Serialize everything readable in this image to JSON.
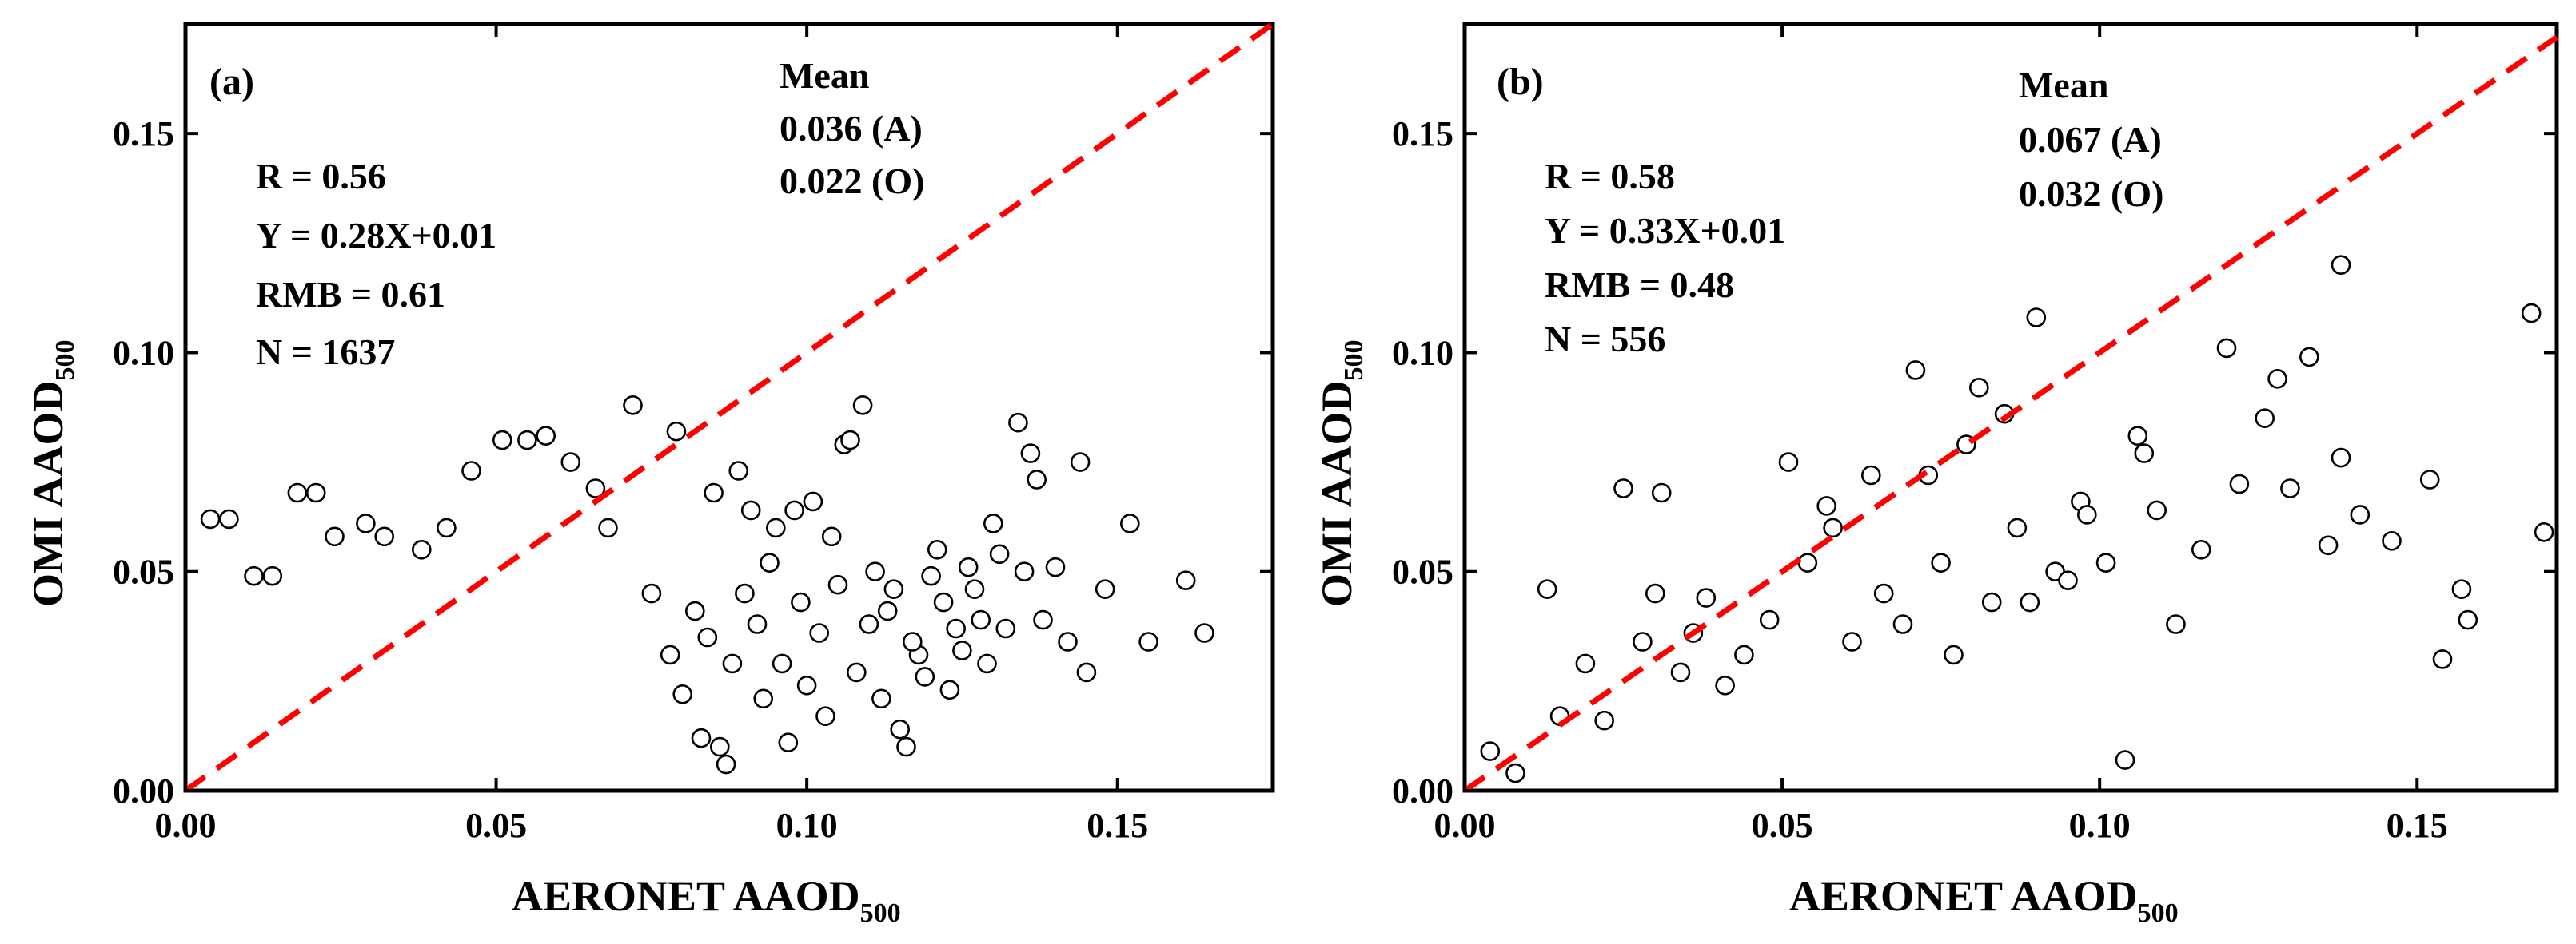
{
  "figure": {
    "panels": [
      {
        "panel_label": "(a)",
        "x_axis_title": "AERONET AAOD",
        "x_axis_sub": "500",
        "y_axis_title": "OMI AAOD",
        "y_axis_sub": "500",
        "x_ticks": [
          "0.00",
          "0.05",
          "0.10",
          "0.15"
        ],
        "y_ticks": [
          "0.00",
          "0.05",
          "0.10",
          "0.15"
        ],
        "stats": [
          "R = 0.56",
          "Y = 0.28X+0.01",
          "RMB = 0.61",
          "N = 1637"
        ],
        "mean_title": "Mean",
        "mean_lines": [
          "0.036 (A)",
          "0.022 (O)"
        ]
      },
      {
        "panel_label": "(b)",
        "x_axis_title": "AERONET AAOD",
        "x_axis_sub": "500",
        "y_axis_title": "OMI AAOD",
        "y_axis_sub": "500",
        "x_ticks": [
          "0.00",
          "0.05",
          "0.10",
          "0.15"
        ],
        "y_ticks": [
          "0.00",
          "0.05",
          "0.10",
          "0.15"
        ],
        "stats": [
          "R = 0.58",
          "Y = 0.33X+0.01",
          "RMB = 0.48",
          "N = 556"
        ],
        "mean_title": "Mean",
        "mean_lines": [
          "0.067 (A)",
          "0.032 (O)"
        ]
      }
    ]
  },
  "chart_data": [
    {
      "type": "scatter",
      "panel": "(a)",
      "xlabel": "AERONET AAOD500",
      "ylabel": "OMI AAOD500",
      "xlim": [
        0,
        0.175
      ],
      "ylim": [
        0,
        0.175
      ],
      "xticks": [
        0,
        0.05,
        0.1,
        0.15
      ],
      "yticks": [
        0,
        0.05,
        0.1,
        0.15
      ],
      "grid": false,
      "reference_line": {
        "style": "dashed",
        "color": "#ff0000",
        "from": [
          0,
          0
        ],
        "to": [
          0.175,
          0.175
        ],
        "label": "1:1"
      },
      "annotations": [
        "R = 0.56",
        "Y = 0.28X+0.01",
        "RMB = 0.61",
        "N = 1637",
        "Mean",
        "0.036 (A)",
        "0.022 (O)"
      ],
      "series": [
        {
          "marker": "open-circle",
          "n_shown_as_estimate": 1637,
          "points": [
            [
              0.004,
              0.062
            ],
            [
              0.007,
              0.062
            ],
            [
              0.011,
              0.049
            ],
            [
              0.014,
              0.049
            ],
            [
              0.018,
              0.068
            ],
            [
              0.021,
              0.068
            ],
            [
              0.024,
              0.058
            ],
            [
              0.029,
              0.061
            ],
            [
              0.032,
              0.058
            ],
            [
              0.038,
              0.055
            ],
            [
              0.042,
              0.06
            ],
            [
              0.046,
              0.073
            ],
            [
              0.051,
              0.08
            ],
            [
              0.055,
              0.08
            ],
            [
              0.058,
              0.081
            ],
            [
              0.062,
              0.075
            ],
            [
              0.066,
              0.069
            ],
            [
              0.068,
              0.06
            ],
            [
              0.072,
              0.088
            ],
            [
              0.079,
              0.082
            ],
            [
              0.085,
              0.068
            ],
            [
              0.089,
              0.073
            ],
            [
              0.091,
              0.064
            ],
            [
              0.095,
              0.06
            ],
            [
              0.098,
              0.064
            ],
            [
              0.101,
              0.066
            ],
            [
              0.104,
              0.058
            ],
            [
              0.106,
              0.079
            ],
            [
              0.107,
              0.08
            ],
            [
              0.109,
              0.088
            ],
            [
              0.111,
              0.05
            ],
            [
              0.113,
              0.041
            ],
            [
              0.115,
              0.014
            ],
            [
              0.116,
              0.01
            ],
            [
              0.118,
              0.031
            ],
            [
              0.12,
              0.049
            ],
            [
              0.121,
              0.055
            ],
            [
              0.124,
              0.037
            ],
            [
              0.127,
              0.046
            ],
            [
              0.13,
              0.061
            ],
            [
              0.132,
              0.037
            ],
            [
              0.134,
              0.084
            ],
            [
              0.135,
              0.05
            ],
            [
              0.136,
              0.077
            ],
            [
              0.137,
              0.071
            ],
            [
              0.138,
              0.039
            ],
            [
              0.14,
              0.051
            ],
            [
              0.142,
              0.034
            ],
            [
              0.144,
              0.075
            ],
            [
              0.145,
              0.027
            ],
            [
              0.148,
              0.046
            ],
            [
              0.152,
              0.061
            ],
            [
              0.155,
              0.034
            ],
            [
              0.161,
              0.048
            ],
            [
              0.164,
              0.036
            ],
            [
              0.075,
              0.045
            ],
            [
              0.078,
              0.031
            ],
            [
              0.08,
              0.022
            ],
            [
              0.082,
              0.041
            ],
            [
              0.083,
              0.012
            ],
            [
              0.084,
              0.035
            ],
            [
              0.086,
              0.01
            ],
            [
              0.087,
              0.006
            ],
            [
              0.088,
              0.029
            ],
            [
              0.09,
              0.045
            ],
            [
              0.092,
              0.038
            ],
            [
              0.093,
              0.021
            ],
            [
              0.094,
              0.052
            ],
            [
              0.096,
              0.029
            ],
            [
              0.097,
              0.011
            ],
            [
              0.099,
              0.043
            ],
            [
              0.1,
              0.024
            ],
            [
              0.102,
              0.036
            ],
            [
              0.103,
              0.017
            ],
            [
              0.105,
              0.047
            ],
            [
              0.108,
              0.027
            ],
            [
              0.11,
              0.038
            ],
            [
              0.112,
              0.021
            ],
            [
              0.114,
              0.046
            ],
            [
              0.117,
              0.034
            ],
            [
              0.119,
              0.026
            ],
            [
              0.122,
              0.043
            ],
            [
              0.123,
              0.023
            ],
            [
              0.125,
              0.032
            ],
            [
              0.126,
              0.051
            ],
            [
              0.128,
              0.039
            ],
            [
              0.129,
              0.029
            ],
            [
              0.131,
              0.054
            ]
          ]
        }
      ]
    },
    {
      "type": "scatter",
      "panel": "(b)",
      "xlabel": "AERONET AAOD500",
      "ylabel": "OMI AAOD500",
      "xlim": [
        0,
        0.172
      ],
      "ylim": [
        0,
        0.175
      ],
      "xticks": [
        0,
        0.05,
        0.1,
        0.15
      ],
      "yticks": [
        0,
        0.05,
        0.1,
        0.15
      ],
      "grid": false,
      "reference_line": {
        "style": "dashed",
        "color": "#ff0000",
        "from": [
          0,
          0
        ],
        "to": [
          0.172,
          0.172
        ],
        "label": "1:1"
      },
      "annotations": [
        "R = 0.58",
        "Y = 0.33X+0.01",
        "RMB = 0.48",
        "N = 556",
        "Mean",
        "0.067 (A)",
        "0.032 (O)"
      ],
      "series": [
        {
          "marker": "open-circle",
          "n_shown_as_estimate": 556,
          "points": [
            [
              0.004,
              0.009
            ],
            [
              0.008,
              0.004
            ],
            [
              0.013,
              0.046
            ],
            [
              0.015,
              0.017
            ],
            [
              0.019,
              0.029
            ],
            [
              0.022,
              0.016
            ],
            [
              0.025,
              0.069
            ],
            [
              0.028,
              0.034
            ],
            [
              0.03,
              0.045
            ],
            [
              0.031,
              0.068
            ],
            [
              0.034,
              0.027
            ],
            [
              0.036,
              0.036
            ],
            [
              0.038,
              0.044
            ],
            [
              0.041,
              0.024
            ],
            [
              0.044,
              0.031
            ],
            [
              0.048,
              0.039
            ],
            [
              0.051,
              0.075
            ],
            [
              0.054,
              0.052
            ],
            [
              0.057,
              0.065
            ],
            [
              0.058,
              0.06
            ],
            [
              0.061,
              0.034
            ],
            [
              0.064,
              0.072
            ],
            [
              0.066,
              0.045
            ],
            [
              0.069,
              0.038
            ],
            [
              0.071,
              0.096
            ],
            [
              0.073,
              0.072
            ],
            [
              0.075,
              0.052
            ],
            [
              0.077,
              0.031
            ],
            [
              0.079,
              0.079
            ],
            [
              0.081,
              0.092
            ],
            [
              0.083,
              0.043
            ],
            [
              0.085,
              0.086
            ],
            [
              0.087,
              0.06
            ],
            [
              0.089,
              0.043
            ],
            [
              0.09,
              0.108
            ],
            [
              0.093,
              0.05
            ],
            [
              0.095,
              0.048
            ],
            [
              0.097,
              0.066
            ],
            [
              0.098,
              0.063
            ],
            [
              0.101,
              0.052
            ],
            [
              0.104,
              0.007
            ],
            [
              0.106,
              0.081
            ],
            [
              0.107,
              0.077
            ],
            [
              0.109,
              0.064
            ],
            [
              0.112,
              0.038
            ],
            [
              0.116,
              0.055
            ],
            [
              0.12,
              0.101
            ],
            [
              0.122,
              0.07
            ],
            [
              0.126,
              0.085
            ],
            [
              0.128,
              0.094
            ],
            [
              0.13,
              0.069
            ],
            [
              0.133,
              0.099
            ],
            [
              0.136,
              0.056
            ],
            [
              0.138,
              0.12
            ],
            [
              0.138,
              0.076
            ],
            [
              0.141,
              0.063
            ],
            [
              0.146,
              0.057
            ],
            [
              0.152,
              0.071
            ],
            [
              0.154,
              0.03
            ],
            [
              0.157,
              0.046
            ],
            [
              0.158,
              0.039
            ],
            [
              0.168,
              0.109
            ],
            [
              0.17,
              0.059
            ]
          ]
        }
      ]
    }
  ]
}
